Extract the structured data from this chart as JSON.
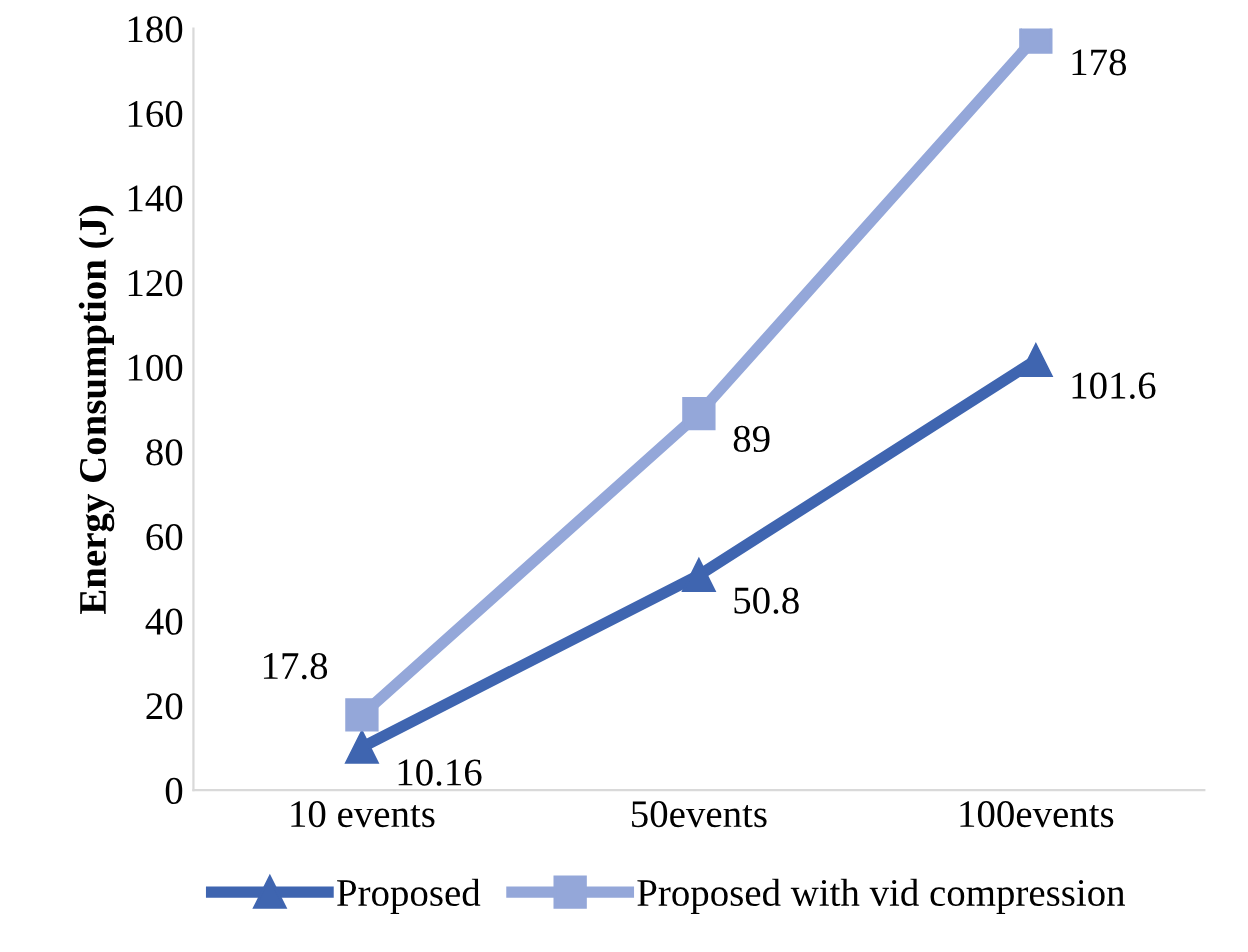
{
  "chart_data": {
    "type": "line",
    "ylabel": "Energy Consumption (J)",
    "categories": [
      "10 events",
      "50events",
      "100events"
    ],
    "series": [
      {
        "name": "Proposed",
        "color": "#3f65b0",
        "values": [
          10.16,
          50.8,
          101.6
        ],
        "marker": "triangle"
      },
      {
        "name": "Proposed with vid compression",
        "color": "#94a7d9",
        "values": [
          17.8,
          89,
          178
        ],
        "marker": "square"
      }
    ],
    "ylim": [
      0,
      180
    ],
    "yticks": [
      0,
      20,
      40,
      60,
      80,
      100,
      120,
      140,
      160,
      180
    ],
    "grid": false,
    "legend": "bottom",
    "data_labels": true,
    "line_style": "solid"
  }
}
